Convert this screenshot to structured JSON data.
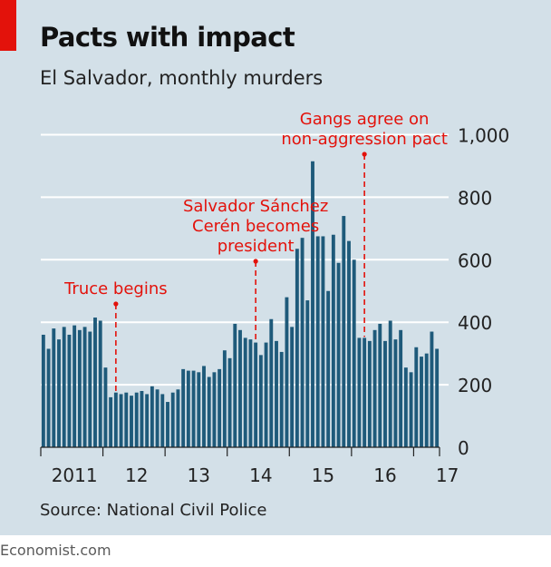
{
  "title": "Pacts with impact",
  "subtitle": "El Salvador, monthly murders",
  "source": "Source: National Civil Police",
  "footer": "Economist.com",
  "colors": {
    "bar": "#1e5a7a",
    "annotation": "#e3120b",
    "panel": "#d3e0e8",
    "grid": "#ffffff"
  },
  "chart_data": {
    "type": "bar",
    "xlabel": "",
    "ylabel": "",
    "ylim": [
      0,
      1000
    ],
    "yticks": [
      0,
      200,
      400,
      600,
      800,
      1000
    ],
    "ytick_labels": [
      "0",
      "200",
      "400",
      "600",
      "800",
      "1,000"
    ],
    "yaxis_position": "right",
    "grid": true,
    "x_labels": [
      {
        "label": "2011",
        "month_index": 6
      },
      {
        "label": "12",
        "month_index": 18
      },
      {
        "label": "13",
        "month_index": 30
      },
      {
        "label": "14",
        "month_index": 42
      },
      {
        "label": "15",
        "month_index": 54
      },
      {
        "label": "16",
        "month_index": 66
      },
      {
        "label": "17",
        "month_index": 78
      }
    ],
    "start": "2011-01",
    "end": "2017-03",
    "values": [
      360,
      315,
      380,
      345,
      385,
      360,
      390,
      375,
      385,
      370,
      415,
      405,
      255,
      160,
      175,
      170,
      175,
      165,
      175,
      180,
      170,
      195,
      185,
      170,
      145,
      175,
      185,
      250,
      245,
      245,
      240,
      260,
      225,
      240,
      250,
      310,
      285,
      395,
      375,
      350,
      345,
      335,
      295,
      335,
      410,
      340,
      305,
      480,
      385,
      635,
      670,
      470,
      915,
      675,
      675,
      500,
      680,
      590,
      740,
      660,
      600,
      350,
      350,
      340,
      375,
      395,
      340,
      405,
      345,
      375,
      255,
      240,
      320,
      290,
      300,
      370,
      315
    ],
    "annotations": [
      {
        "text": [
          "Truce begins"
        ],
        "month_index": 14
      },
      {
        "text": [
          "Salvador Sánchez",
          "Cerén becomes",
          "president"
        ],
        "month_index": 41
      },
      {
        "text": [
          "Gangs agree on",
          "non-aggression pact"
        ],
        "month_index": 62
      }
    ]
  }
}
